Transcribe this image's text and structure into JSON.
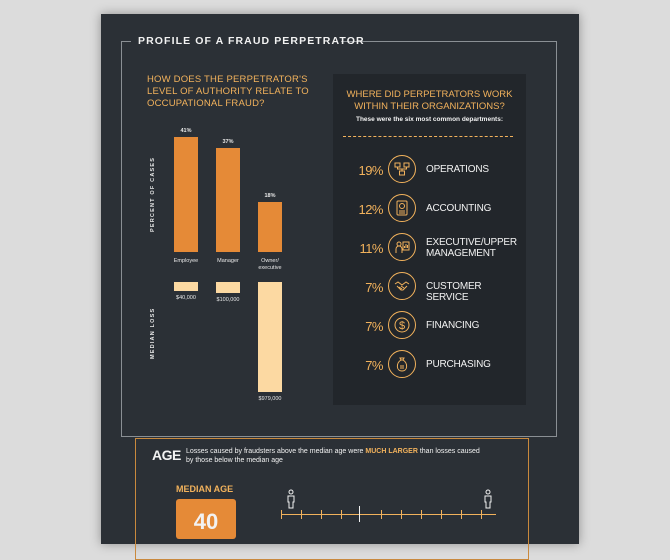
{
  "frame_title": "PROFILE OF A FRAUD PERPETRATOR",
  "authority": {
    "question": "HOW DOES THE PERPETRATOR'S LEVEL OF AUTHORITY RELATE TO OCCUPATIONAL FRAUD?",
    "axis_percent": "PERCENT OF CASES",
    "axis_loss": "MEDIAN LOSS",
    "categories": [
      {
        "name": "Employee",
        "percent": 41,
        "percent_label": "41%",
        "loss": 40000,
        "loss_label": "$40,000"
      },
      {
        "name": "Manager",
        "percent": 37,
        "percent_label": "37%",
        "loss": 100000,
        "loss_label": "$100,000"
      },
      {
        "name": "Owner/ executive",
        "percent": 18,
        "percent_label": "18%",
        "loss": 979000,
        "loss_label": "$979,000"
      }
    ],
    "colors": {
      "percent_bar": "#e58a37",
      "loss_bar": "#fcd9a2"
    }
  },
  "departments": {
    "question": "WHERE DID PERPETRATORS WORK WITHIN THEIR ORGANIZATIONS?",
    "subtitle": "These were the six most common departments:",
    "items": [
      {
        "pct": "19%",
        "label": "OPERATIONS",
        "icon": "operations-icon"
      },
      {
        "pct": "12%",
        "label": "ACCOUNTING",
        "icon": "accounting-icon"
      },
      {
        "pct": "11%",
        "label": "EXECUTIVE/UPPER MANAGEMENT",
        "icon": "executive-icon"
      },
      {
        "pct": "7%",
        "label": "CUSTOMER SERVICE",
        "icon": "handshake-icon"
      },
      {
        "pct": "7%",
        "label": "FINANCING",
        "icon": "dollar-icon"
      },
      {
        "pct": "7%",
        "label": "PURCHASING",
        "icon": "purchasing-icon"
      }
    ]
  },
  "age": {
    "title": "AGE",
    "desc_before": "Losses caused by fraudsters above the median age were ",
    "desc_highlight": "MUCH LARGER",
    "desc_after": " than losses caused by those below the median age",
    "median_label": "MEDIAN AGE",
    "median_value": "40"
  },
  "accent_color": "#f2b25c"
}
